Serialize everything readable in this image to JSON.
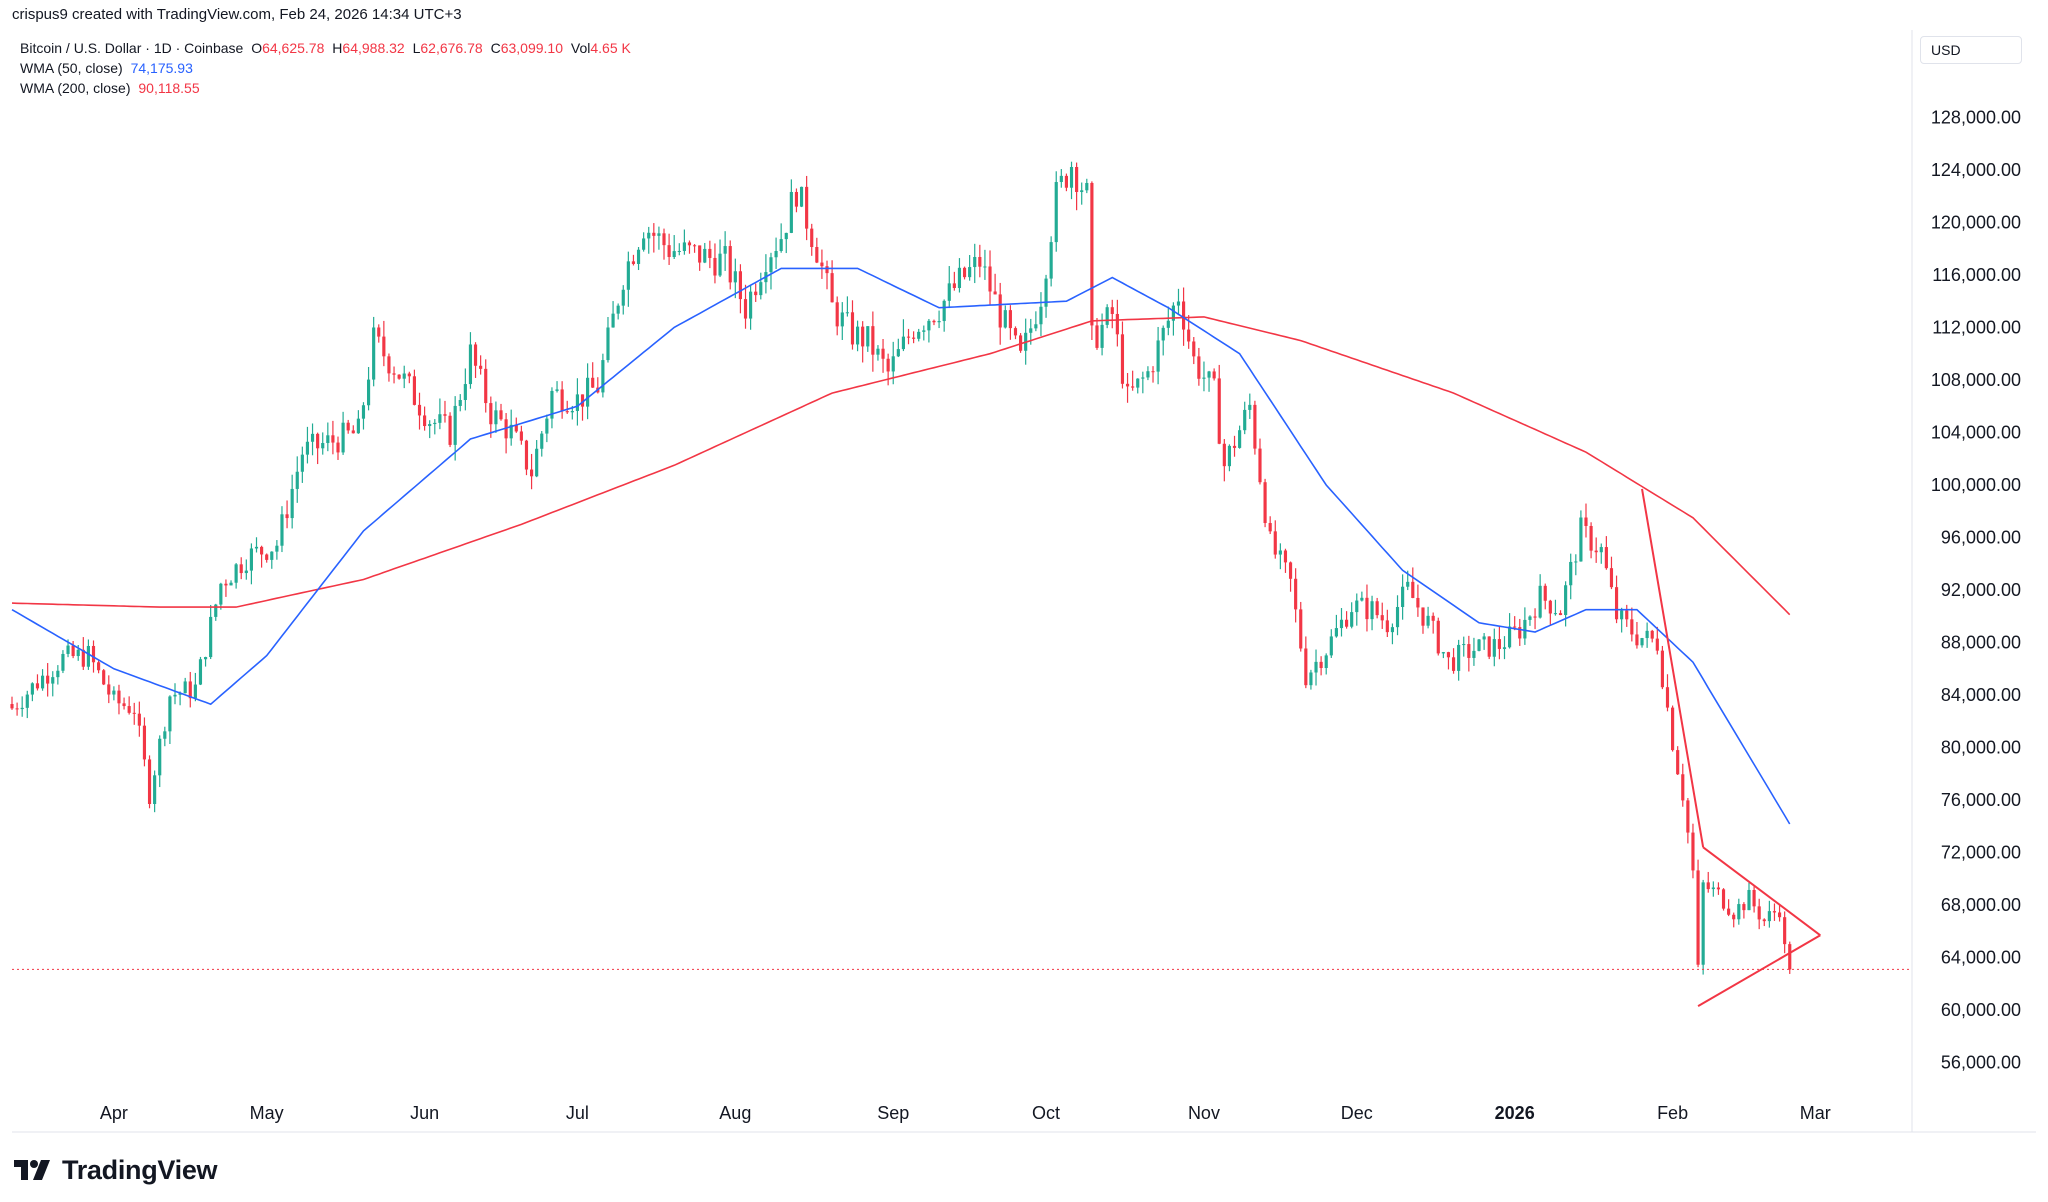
{
  "header": {
    "attribution": "crispus9 created with TradingView.com, Feb 24, 2026 14:34 UTC+3"
  },
  "legend": {
    "symbol": "Bitcoin / U.S. Dollar · 1D · Coinbase",
    "open_label": "O",
    "open": "64,625.78",
    "high_label": "H",
    "high": "64,988.32",
    "low_label": "L",
    "low": "62,676.78",
    "close_label": "C",
    "close": "63,099.10",
    "vol_label": "Vol",
    "vol": "4.65 K",
    "wma50_label": "WMA (50, close)",
    "wma50_value": "74,175.93",
    "wma200_label": "WMA (200, close)",
    "wma200_value": "90,118.55"
  },
  "axis": {
    "currency": "USD"
  },
  "brand": {
    "name": "TradingView"
  },
  "colors": {
    "up": "#22ab94",
    "down": "#f23645",
    "wma50": "#2962ff",
    "wma200": "#f23645",
    "trendline": "#f23645",
    "text": "#131722"
  },
  "chart_data": {
    "type": "candlestick",
    "ylim": [
      53000,
      131000
    ],
    "y_ticks": [
      56000,
      60000,
      64000,
      68000,
      72000,
      76000,
      80000,
      84000,
      88000,
      92000,
      96000,
      100000,
      104000,
      108000,
      112000,
      116000,
      120000,
      124000,
      128000
    ],
    "y_tick_labels": [
      "56,000.00",
      "60,000.00",
      "64,000.00",
      "68,000.00",
      "72,000.00",
      "76,000.00",
      "80,000.00",
      "84,000.00",
      "88,000.00",
      "92,000.00",
      "96,000.00",
      "100,000.00",
      "104,000.00",
      "108,000.00",
      "112,000.00",
      "116,000.00",
      "120,000.00",
      "124,000.00",
      "128,000.00"
    ],
    "x_start": "2025-03-12",
    "x_end": "2026-03-20",
    "x_ticks": [
      {
        "date": "2025-04-01",
        "label": "Apr",
        "bold": false
      },
      {
        "date": "2025-05-01",
        "label": "May",
        "bold": false
      },
      {
        "date": "2025-06-01",
        "label": "Jun",
        "bold": false
      },
      {
        "date": "2025-07-01",
        "label": "Jul",
        "bold": false
      },
      {
        "date": "2025-08-01",
        "label": "Aug",
        "bold": false
      },
      {
        "date": "2025-09-01",
        "label": "Sep",
        "bold": false
      },
      {
        "date": "2025-10-01",
        "label": "Oct",
        "bold": false
      },
      {
        "date": "2025-11-01",
        "label": "Nov",
        "bold": false
      },
      {
        "date": "2025-12-01",
        "label": "Dec",
        "bold": false
      },
      {
        "date": "2026-01-01",
        "label": "2026",
        "bold": true
      },
      {
        "date": "2026-02-01",
        "label": "Feb",
        "bold": false
      },
      {
        "date": "2026-03-01",
        "label": "Mar",
        "bold": false
      }
    ],
    "price_anchors": [
      [
        "2025-03-12",
        83000
      ],
      [
        "2025-03-17",
        85000
      ],
      [
        "2025-03-22",
        86800
      ],
      [
        "2025-03-27",
        87000
      ],
      [
        "2025-04-01",
        83500
      ],
      [
        "2025-04-05",
        83000
      ],
      [
        "2025-04-08",
        76500
      ],
      [
        "2025-04-12",
        84000
      ],
      [
        "2025-04-17",
        84500
      ],
      [
        "2025-04-22",
        92500
      ],
      [
        "2025-04-27",
        94500
      ],
      [
        "2025-05-03",
        95500
      ],
      [
        "2025-05-08",
        102500
      ],
      [
        "2025-05-15",
        103500
      ],
      [
        "2025-05-19",
        104000
      ],
      [
        "2025-05-22",
        111000
      ],
      [
        "2025-05-27",
        108500
      ],
      [
        "2025-06-02",
        105000
      ],
      [
        "2025-06-06",
        104000
      ],
      [
        "2025-06-10",
        110000
      ],
      [
        "2025-06-14",
        105500
      ],
      [
        "2025-06-18",
        104000
      ],
      [
        "2025-06-22",
        101000
      ],
      [
        "2025-06-26",
        107000
      ],
      [
        "2025-07-01",
        106500
      ],
      [
        "2025-07-05",
        107500
      ],
      [
        "2025-07-10",
        116000
      ],
      [
        "2025-07-14",
        119800
      ],
      [
        "2025-07-19",
        118000
      ],
      [
        "2025-07-25",
        117500
      ],
      [
        "2025-07-30",
        117000
      ],
      [
        "2025-08-03",
        113500
      ],
      [
        "2025-08-07",
        117500
      ],
      [
        "2025-08-10",
        119000
      ],
      [
        "2025-08-13",
        122500
      ],
      [
        "2025-08-17",
        118000
      ],
      [
        "2025-08-20",
        113500
      ],
      [
        "2025-08-24",
        111500
      ],
      [
        "2025-08-27",
        111000
      ],
      [
        "2025-08-31",
        108500
      ],
      [
        "2025-09-05",
        112000
      ],
      [
        "2025-09-10",
        113500
      ],
      [
        "2025-09-14",
        115500
      ],
      [
        "2025-09-18",
        117000
      ],
      [
        "2025-09-22",
        113000
      ],
      [
        "2025-09-26",
        109500
      ],
      [
        "2025-09-30",
        114500
      ],
      [
        "2025-10-03",
        122000
      ],
      [
        "2025-10-06",
        124500
      ],
      [
        "2025-10-09",
        122000
      ],
      [
        "2025-10-10",
        111000
      ],
      [
        "2025-10-14",
        113000
      ],
      [
        "2025-10-17",
        106500
      ],
      [
        "2025-10-21",
        108500
      ],
      [
        "2025-10-24",
        111500
      ],
      [
        "2025-10-27",
        114500
      ],
      [
        "2025-10-30",
        109500
      ],
      [
        "2025-11-03",
        107000
      ],
      [
        "2025-11-05",
        101500
      ],
      [
        "2025-11-10",
        106000
      ],
      [
        "2025-11-14",
        95500
      ],
      [
        "2025-11-18",
        92500
      ],
      [
        "2025-11-21",
        85500
      ],
      [
        "2025-11-25",
        87500
      ],
      [
        "2025-11-30",
        90800
      ],
      [
        "2025-12-04",
        90500
      ],
      [
        "2025-12-07",
        89500
      ],
      [
        "2025-12-11",
        92000
      ],
      [
        "2025-12-15",
        89500
      ],
      [
        "2025-12-19",
        86500
      ],
      [
        "2025-12-24",
        87500
      ],
      [
        "2025-12-29",
        87800
      ],
      [
        "2026-01-02",
        89000
      ],
      [
        "2026-01-06",
        91500
      ],
      [
        "2026-01-10",
        90500
      ],
      [
        "2026-01-14",
        96500
      ],
      [
        "2026-01-18",
        95000
      ],
      [
        "2026-01-21",
        90000
      ],
      [
        "2026-01-25",
        88500
      ],
      [
        "2026-01-29",
        88000
      ],
      [
        "2026-02-01",
        80500
      ],
      [
        "2026-02-03",
        76500
      ],
      [
        "2026-02-05",
        70500
      ],
      [
        "2026-02-06",
        63000
      ],
      [
        "2026-02-07",
        69500
      ],
      [
        "2026-02-10",
        68800
      ],
      [
        "2026-02-13",
        67500
      ],
      [
        "2026-02-16",
        68500
      ],
      [
        "2026-02-19",
        66800
      ],
      [
        "2026-02-22",
        67800
      ],
      [
        "2026-02-23",
        64600
      ],
      [
        "2026-02-24",
        63099
      ]
    ],
    "wma50_anchors": [
      [
        "2025-03-12",
        90500
      ],
      [
        "2025-04-01",
        86000
      ],
      [
        "2025-04-20",
        83300
      ],
      [
        "2025-05-01",
        87000
      ],
      [
        "2025-05-20",
        96500
      ],
      [
        "2025-06-10",
        103500
      ],
      [
        "2025-07-01",
        106000
      ],
      [
        "2025-07-20",
        112000
      ],
      [
        "2025-08-10",
        116500
      ],
      [
        "2025-08-25",
        116500
      ],
      [
        "2025-09-10",
        113500
      ],
      [
        "2025-09-25",
        113800
      ],
      [
        "2025-10-05",
        114000
      ],
      [
        "2025-10-14",
        115800
      ],
      [
        "2025-10-25",
        113500
      ],
      [
        "2025-11-08",
        110000
      ],
      [
        "2025-11-25",
        100000
      ],
      [
        "2025-12-10",
        93500
      ],
      [
        "2025-12-25",
        89500
      ],
      [
        "2026-01-05",
        88800
      ],
      [
        "2026-01-15",
        90500
      ],
      [
        "2026-01-25",
        90500
      ],
      [
        "2026-02-05",
        86500
      ],
      [
        "2026-02-24",
        74176
      ]
    ],
    "wma200_anchors": [
      [
        "2025-03-12",
        91000
      ],
      [
        "2025-04-10",
        90700
      ],
      [
        "2025-04-25",
        90700
      ],
      [
        "2025-05-20",
        92800
      ],
      [
        "2025-06-20",
        97000
      ],
      [
        "2025-07-20",
        101500
      ],
      [
        "2025-08-20",
        107000
      ],
      [
        "2025-09-20",
        110000
      ],
      [
        "2025-10-10",
        112500
      ],
      [
        "2025-11-01",
        112800
      ],
      [
        "2025-11-20",
        111000
      ],
      [
        "2025-12-20",
        107000
      ],
      [
        "2026-01-15",
        102500
      ],
      [
        "2026-02-05",
        97500
      ],
      [
        "2026-02-24",
        90119
      ]
    ],
    "last_price": 63099.1,
    "trendlines": [
      [
        [
          "2026-01-26",
          99700
        ],
        [
          "2026-02-07",
          72400
        ]
      ],
      [
        [
          "2026-02-07",
          72400
        ],
        [
          "2026-03-02",
          65700
        ]
      ],
      [
        [
          "2026-02-06",
          60300
        ],
        [
          "2026-03-02",
          65700
        ]
      ]
    ]
  }
}
